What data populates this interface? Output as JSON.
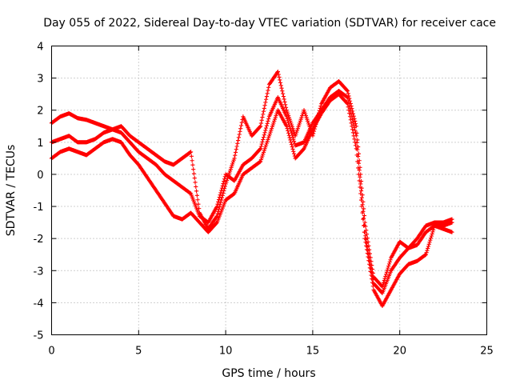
{
  "chart_data": {
    "type": "scatter",
    "title": "Day 055 of 2022, Sidereal Day-to-day VTEC variation (SDTVAR) for receiver cace",
    "xlabel": "GPS time / hours",
    "ylabel": "SDTVAR / TECUs",
    "xlim": [
      0,
      25
    ],
    "ylim": [
      -5,
      4
    ],
    "xticks": [
      "0",
      "5",
      "10",
      "15",
      "20",
      "25"
    ],
    "yticks": [
      "-5",
      "-4",
      "-3",
      "-2",
      "-1",
      "0",
      "1",
      "2",
      "3",
      "4"
    ],
    "grid": true,
    "marker": "+",
    "color": "#ff0000",
    "series": [
      {
        "x": [
          0.0,
          0.5,
          1.0,
          1.5,
          2.0,
          2.5,
          3.0,
          3.5,
          4.0,
          4.5,
          5.0,
          5.5,
          6.0,
          6.5,
          7.0,
          7.5,
          8.0,
          8.5,
          9.0,
          9.5,
          10.0,
          10.5,
          11.0,
          11.5,
          12.0,
          12.5,
          13.0,
          13.5,
          14.0,
          14.5,
          15.0,
          15.5,
          16.0,
          16.5,
          17.0,
          17.5,
          18.0,
          18.5,
          19.0,
          19.5,
          20.0,
          20.5,
          21.0,
          21.5,
          22.0,
          22.5,
          23.0
        ],
        "y": [
          1.6,
          1.8,
          1.9,
          1.75,
          1.7,
          1.6,
          1.5,
          1.4,
          1.5,
          1.2,
          1.0,
          0.8,
          0.6,
          0.4,
          0.3,
          0.5,
          0.7,
          -1.2,
          -1.7,
          -1.3,
          -0.3,
          0.5,
          1.8,
          1.2,
          1.5,
          2.8,
          3.2,
          2.0,
          1.2,
          2.0,
          1.2,
          2.2,
          2.7,
          2.9,
          2.6,
          1.5,
          -1.5,
          -3.2,
          -3.5,
          -2.6,
          -2.1,
          -2.3,
          -2.0,
          -1.6,
          -1.5,
          -1.5,
          -1.4
        ]
      },
      {
        "x": [
          0.0,
          0.5,
          1.0,
          1.5,
          2.0,
          2.5,
          3.0,
          3.5,
          4.0,
          4.5,
          5.0,
          5.5,
          6.0,
          6.5,
          7.0,
          7.5,
          8.0,
          8.5,
          9.0,
          9.5,
          10.0,
          10.5,
          11.0,
          11.5,
          12.0,
          12.5,
          13.0,
          13.5,
          14.0,
          14.5,
          15.0,
          15.5,
          16.0,
          16.5,
          17.0,
          17.5,
          18.0,
          18.5,
          19.0,
          19.5,
          20.0,
          20.5,
          21.0,
          21.5,
          22.0,
          22.5,
          23.0
        ],
        "y": [
          1.0,
          1.1,
          1.2,
          1.0,
          1.0,
          1.1,
          1.3,
          1.4,
          1.3,
          1.0,
          0.7,
          0.5,
          0.3,
          0.0,
          -0.2,
          -0.4,
          -0.6,
          -1.3,
          -1.5,
          -1.0,
          0.0,
          -0.2,
          0.3,
          0.5,
          0.8,
          1.8,
          2.4,
          1.8,
          0.9,
          1.0,
          1.6,
          2.0,
          2.4,
          2.6,
          2.4,
          1.2,
          -1.8,
          -3.4,
          -3.7,
          -3.0,
          -2.6,
          -2.3,
          -2.2,
          -1.8,
          -1.6,
          -1.6,
          -1.5
        ]
      },
      {
        "x": [
          0.0,
          0.5,
          1.0,
          1.5,
          2.0,
          2.5,
          3.0,
          3.5,
          4.0,
          4.5,
          5.0,
          5.5,
          6.0,
          6.5,
          7.0,
          7.5,
          8.0,
          8.5,
          9.0,
          9.5,
          10.0,
          10.5,
          11.0,
          11.5,
          12.0,
          12.5,
          13.0,
          13.5,
          14.0,
          14.5,
          15.0,
          15.5,
          16.0,
          16.5,
          17.0,
          17.5,
          18.0,
          18.5,
          19.0,
          19.5,
          20.0,
          20.5,
          21.0,
          21.5,
          22.0,
          22.5,
          23.0
        ],
        "y": [
          0.5,
          0.7,
          0.8,
          0.7,
          0.6,
          0.8,
          1.0,
          1.1,
          1.0,
          0.6,
          0.3,
          -0.1,
          -0.5,
          -0.9,
          -1.3,
          -1.4,
          -1.2,
          -1.5,
          -1.8,
          -1.5,
          -0.8,
          -0.6,
          0.0,
          0.2,
          0.4,
          1.2,
          2.0,
          1.5,
          0.5,
          0.8,
          1.4,
          1.9,
          2.3,
          2.5,
          2.2,
          0.8,
          -2.0,
          -3.6,
          -4.1,
          -3.6,
          -3.1,
          -2.8,
          -2.7,
          -2.5,
          -1.6,
          -1.7,
          -1.8
        ]
      }
    ]
  }
}
